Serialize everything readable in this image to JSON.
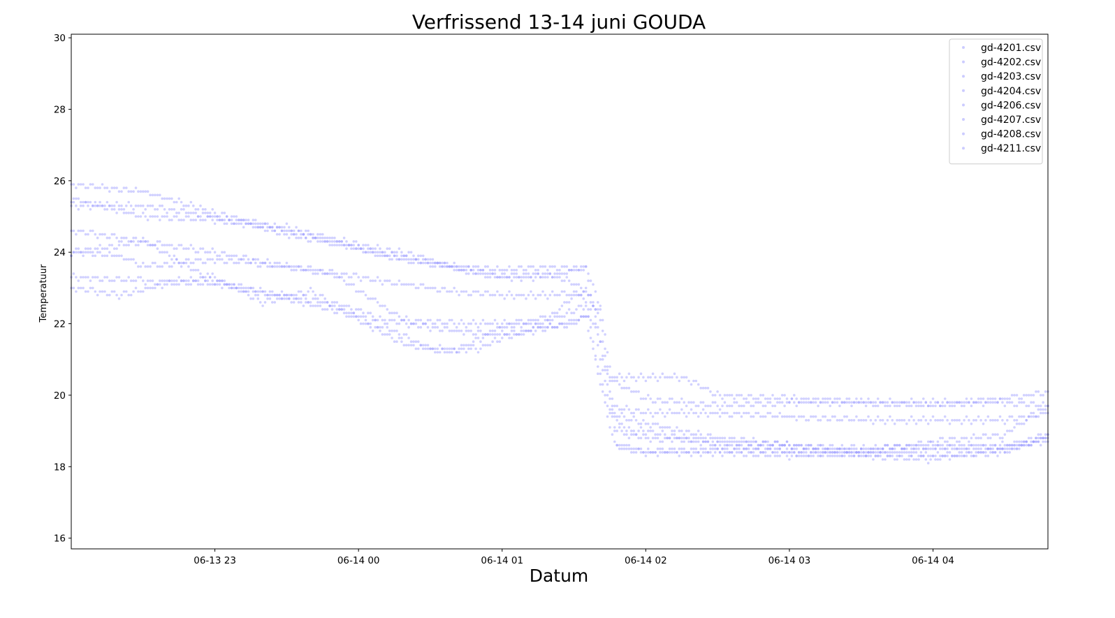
{
  "chart_data": {
    "type": "scatter",
    "title": "Verfrissend 13-14 juni GOUDA",
    "xlabel": "Datum",
    "ylabel": "Temperatuur",
    "x_axis": {
      "unit": "datetime",
      "range": [
        "2020-06-13 22:00",
        "2020-06-14 04:48"
      ],
      "ticks": [
        "06-13 23",
        "06-14 00",
        "06-14 01",
        "06-14 02",
        "06-14 03",
        "06-14 04"
      ]
    },
    "ylim": [
      15.7,
      30.1
    ],
    "yticks": [
      16,
      18,
      20,
      22,
      24,
      26,
      28,
      30
    ],
    "grid": false,
    "legend_position": "top-right",
    "marker_color": "#9999ff",
    "series": [
      {
        "name": "gd-4201.csv",
        "points": [
          [
            "22:00",
            25.9
          ],
          [
            "22:30",
            25.7
          ],
          [
            "23:00",
            25.1
          ],
          [
            "23:30",
            24.6
          ],
          [
            "23:54",
            24.3
          ],
          [
            "00:17",
            24.0
          ],
          [
            "00:40",
            23.6
          ],
          [
            "01:00",
            23.5
          ],
          [
            "01:20",
            23.6
          ],
          [
            "01:35",
            23.5
          ],
          [
            "01:41",
            21.5
          ],
          [
            "01:44",
            20.5
          ],
          [
            "02:00",
            20.5
          ],
          [
            "02:15",
            20.5
          ],
          [
            "02:30",
            20.0
          ],
          [
            "03:00",
            19.9
          ],
          [
            "03:30",
            19.8
          ],
          [
            "04:00",
            19.7
          ],
          [
            "04:30",
            19.9
          ],
          [
            "04:48",
            20.1
          ]
        ]
      },
      {
        "name": "gd-4202.csv",
        "points": [
          [
            "22:00",
            25.5
          ],
          [
            "22:30",
            25.0
          ],
          [
            "23:00",
            24.9
          ],
          [
            "23:30",
            24.7
          ],
          [
            "23:50",
            24.3
          ],
          [
            "00:10",
            23.9
          ],
          [
            "00:30",
            23.7
          ],
          [
            "01:00",
            23.3
          ],
          [
            "01:20",
            23.3
          ],
          [
            "01:35",
            23.6
          ],
          [
            "01:41",
            22.5
          ],
          [
            "01:46",
            20.4
          ],
          [
            "02:00",
            19.9
          ],
          [
            "02:30",
            19.7
          ],
          [
            "03:00",
            19.8
          ],
          [
            "03:30",
            19.8
          ],
          [
            "04:00",
            19.8
          ],
          [
            "04:30",
            19.8
          ],
          [
            "04:48",
            19.7
          ]
        ]
      },
      {
        "name": "gd-4203.csv",
        "points": [
          [
            "22:00",
            25.3
          ],
          [
            "22:30",
            25.3
          ],
          [
            "23:00",
            25.0
          ],
          [
            "23:30",
            24.5
          ],
          [
            "23:54",
            24.2
          ],
          [
            "00:20",
            23.8
          ],
          [
            "00:40",
            23.6
          ],
          [
            "01:00",
            23.3
          ],
          [
            "01:20",
            23.4
          ],
          [
            "01:34",
            23.0
          ],
          [
            "01:41",
            22.3
          ],
          [
            "01:47",
            19.4
          ],
          [
            "01:53",
            18.9
          ],
          [
            "02:00",
            18.8
          ],
          [
            "02:30",
            18.7
          ],
          [
            "03:00",
            18.6
          ],
          [
            "03:30",
            18.5
          ],
          [
            "04:00",
            18.6
          ],
          [
            "04:30",
            18.5
          ],
          [
            "04:48",
            18.9
          ]
        ]
      },
      {
        "name": "gd-4204.csv",
        "points": [
          [
            "22:00",
            24.6
          ],
          [
            "22:30",
            24.3
          ],
          [
            "23:00",
            24.0
          ],
          [
            "23:30",
            23.6
          ],
          [
            "00:00",
            23.3
          ],
          [
            "00:20",
            23.1
          ],
          [
            "00:40",
            22.9
          ],
          [
            "01:00",
            22.8
          ],
          [
            "01:20",
            22.8
          ],
          [
            "01:35",
            22.9
          ],
          [
            "01:41",
            22.1
          ],
          [
            "01:48",
            18.6
          ],
          [
            "02:00",
            18.4
          ],
          [
            "02:30",
            18.4
          ],
          [
            "03:00",
            18.3
          ],
          [
            "03:30",
            18.4
          ],
          [
            "04:00",
            18.3
          ],
          [
            "04:30",
            18.4
          ],
          [
            "04:48",
            18.9
          ]
        ]
      },
      {
        "name": "gd-4206.csv",
        "points": [
          [
            "22:00",
            24.0
          ],
          [
            "22:20",
            23.9
          ],
          [
            "22:30",
            23.6
          ],
          [
            "23:00",
            23.8
          ],
          [
            "23:30",
            23.6
          ],
          [
            "23:50",
            23.4
          ],
          [
            "00:10",
            22.5
          ],
          [
            "00:20",
            22.1
          ],
          [
            "00:40",
            22.0
          ],
          [
            "01:00",
            22.0
          ],
          [
            "01:10",
            22.0
          ],
          [
            "01:20",
            21.9
          ],
          [
            "01:30",
            22.0
          ],
          [
            "01:38",
            22.4
          ],
          [
            "01:41",
            21.0
          ],
          [
            "01:45",
            19.7
          ],
          [
            "02:00",
            19.5
          ],
          [
            "02:30",
            19.5
          ],
          [
            "03:00",
            19.4
          ],
          [
            "03:30",
            19.3
          ],
          [
            "04:00",
            19.3
          ],
          [
            "04:30",
            19.3
          ],
          [
            "04:48",
            19.5
          ]
        ]
      },
      {
        "name": "gd-4207.csv",
        "points": [
          [
            "22:00",
            23.3
          ],
          [
            "22:30",
            23.2
          ],
          [
            "23:00",
            23.1
          ],
          [
            "23:30",
            22.8
          ],
          [
            "23:54",
            22.5
          ],
          [
            "00:10",
            22.1
          ],
          [
            "00:30",
            21.9
          ],
          [
            "00:40",
            21.8
          ],
          [
            "01:00",
            21.7
          ],
          [
            "01:10",
            21.8
          ],
          [
            "01:20",
            22.1
          ],
          [
            "01:35",
            22.5
          ],
          [
            "01:41",
            20.5
          ],
          [
            "01:45",
            19.5
          ],
          [
            "02:00",
            19.2
          ],
          [
            "02:30",
            18.8
          ],
          [
            "03:00",
            18.6
          ],
          [
            "03:30",
            18.4
          ],
          [
            "04:00",
            18.7
          ],
          [
            "04:30",
            18.9
          ],
          [
            "04:48",
            19.7
          ]
        ]
      },
      {
        "name": "gd-4208.csv",
        "points": [
          [
            "22:00",
            23.0
          ],
          [
            "22:20",
            22.8
          ],
          [
            "22:45",
            23.2
          ],
          [
            "23:00",
            23.3
          ],
          [
            "23:20",
            22.6
          ],
          [
            "23:40",
            22.9
          ],
          [
            "00:00",
            22.1
          ],
          [
            "00:20",
            21.4
          ],
          [
            "00:40",
            21.2
          ],
          [
            "01:00",
            21.9
          ],
          [
            "01:20",
            22.2
          ],
          [
            "01:33",
            22.9
          ],
          [
            "01:41",
            21.5
          ],
          [
            "01:47",
            19.0
          ],
          [
            "02:00",
            19.0
          ],
          [
            "02:30",
            18.6
          ],
          [
            "03:00",
            18.5
          ],
          [
            "03:30",
            18.4
          ],
          [
            "04:00",
            18.5
          ],
          [
            "04:30",
            18.6
          ],
          [
            "04:48",
            18.7
          ]
        ]
      },
      {
        "name": "gd-4211.csv",
        "points": [
          [
            "22:00",
            24.0
          ],
          [
            "22:30",
            24.3
          ],
          [
            "23:00",
            23.2
          ],
          [
            "23:30",
            22.7
          ],
          [
            "00:00",
            22.2
          ],
          [
            "00:15",
            21.8
          ],
          [
            "00:30",
            21.3
          ],
          [
            "00:50",
            21.3
          ],
          [
            "01:00",
            21.6
          ],
          [
            "01:20",
            21.9
          ],
          [
            "01:35",
            22.2
          ],
          [
            "01:41",
            20.3
          ],
          [
            "01:47",
            18.6
          ],
          [
            "02:00",
            18.4
          ],
          [
            "02:30",
            18.5
          ],
          [
            "03:00",
            18.4
          ],
          [
            "03:30",
            18.3
          ],
          [
            "04:00",
            18.2
          ],
          [
            "04:30",
            18.5
          ],
          [
            "04:48",
            18.8
          ]
        ]
      }
    ]
  }
}
